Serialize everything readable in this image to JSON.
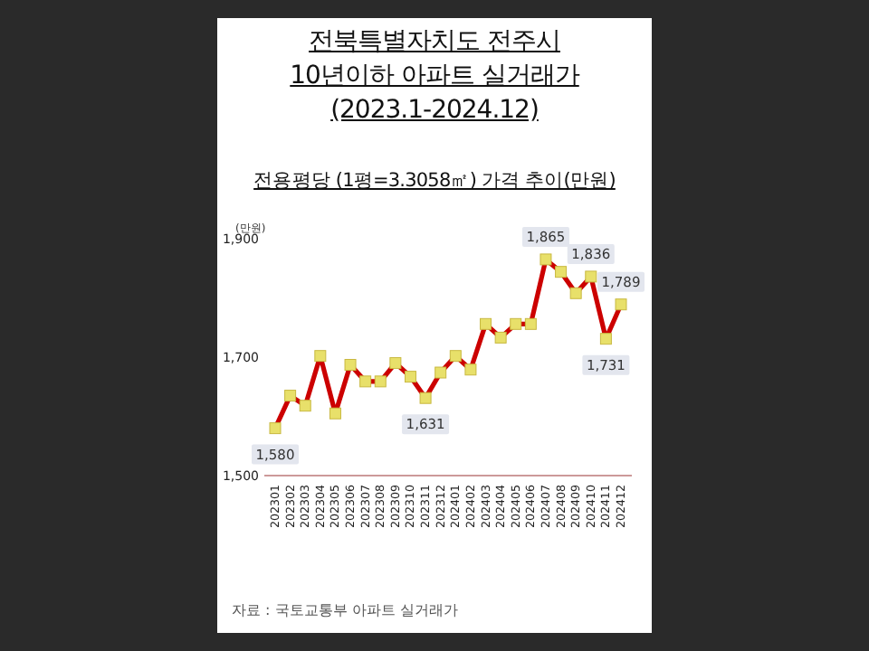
{
  "chart_data": {
    "type": "line",
    "title": "전북특별자치도 전주시 10년이하 아파트 실거래가 (2023.1-2024.12)",
    "subtitle": "전용평당 (1평=3.3058㎡) 가격 추이(만원)",
    "ylabel": "(만원)",
    "categories": [
      "202301",
      "202302",
      "202303",
      "202304",
      "202305",
      "202306",
      "202307",
      "202308",
      "202309",
      "202310",
      "202311",
      "202312",
      "202401",
      "202402",
      "202403",
      "202404",
      "202405",
      "202406",
      "202407",
      "202408",
      "202409",
      "202410",
      "202411",
      "202412"
    ],
    "series": [
      {
        "color": "#cc0000",
        "values": [
          1580,
          1635,
          1618,
          1702,
          1605,
          1687,
          1659,
          1659,
          1690,
          1667,
          1631,
          1674,
          1702,
          1679,
          1756,
          1733,
          1756,
          1756,
          1865,
          1844,
          1808,
          1836,
          1731,
          1789
        ],
        "value_labels": [
          "1,580",
          null,
          null,
          null,
          null,
          null,
          null,
          null,
          null,
          null,
          "1,631",
          null,
          null,
          null,
          null,
          null,
          null,
          null,
          "1,865",
          null,
          null,
          "1,836",
          "1,731",
          "1,789"
        ]
      }
    ],
    "ylim": [
      1500,
      1900
    ],
    "yticks": [
      {
        "value": 1500,
        "label": "1,500"
      },
      {
        "value": 1700,
        "label": "1,700"
      },
      {
        "value": 1900,
        "label": "1,900"
      }
    ],
    "marker": "square",
    "grid": false,
    "annotations": [
      "자료 : 국토교통부 아파트 실거래가"
    ]
  }
}
